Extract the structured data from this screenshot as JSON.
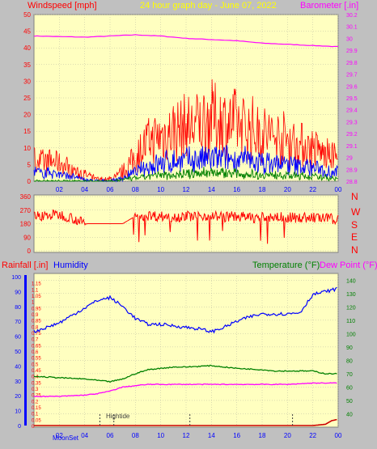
{
  "colors": {
    "bg": "#c0c0c0",
    "plot": "#ffffc0",
    "grid": "#b8b8a0",
    "red": "#ff0000",
    "blue": "#0000ff",
    "green": "#008000",
    "magenta": "#ff00ff",
    "yellow": "#ffff00",
    "darkred": "#cc0000"
  },
  "header": {
    "left_title": "Windspeed [mph]",
    "center_title": "24 hour graph day - June 07, 2022",
    "right_title": "Barometer [.in]"
  },
  "middle_header": {
    "rainfall_label": "Rainfall [.in]",
    "humidity_label": "Humidity",
    "temperature_label": "Temperature (°F)",
    "dewpoint_label": "Dew Point (°F)"
  },
  "bottom_labels": {
    "moonset": "MoonSet",
    "hightide": "Hightide"
  },
  "chart_data": [
    {
      "type": "line",
      "name": "wind-barometer",
      "x_ticks": [
        "02",
        "04",
        "06",
        "08",
        "10",
        "12",
        "14",
        "16",
        "18",
        "20",
        "22",
        "00"
      ],
      "y_left": {
        "label": "Windspeed [mph]",
        "ylim": [
          0,
          50
        ],
        "ticks": [
          0,
          5,
          10,
          15,
          20,
          25,
          30,
          35,
          40,
          45,
          50
        ]
      },
      "y_right": {
        "label": "Barometer [.in]",
        "ylim": [
          28.8,
          30.2
        ],
        "ticks": [
          "28.8",
          "28.9",
          "29",
          "29.1",
          "29.2",
          "29.3",
          "29.4",
          "29.5",
          "29.6",
          "29.7",
          "29.8",
          "29.9",
          "30",
          "30.1",
          "30.2"
        ]
      },
      "barometer": {
        "x": [
          0,
          4,
          6,
          8,
          10,
          12,
          14,
          16,
          18,
          20,
          22,
          24
        ],
        "y": [
          30.02,
          30.01,
          30.02,
          30.03,
          30.02,
          30.0,
          29.99,
          29.98,
          29.96,
          29.95,
          29.94,
          29.93
        ]
      },
      "wind_gust": {
        "x": [
          0,
          2,
          3,
          4,
          5,
          6,
          7,
          8,
          9,
          10,
          11,
          12,
          13,
          14,
          15,
          16,
          17,
          18,
          19,
          20,
          21,
          22,
          23,
          24
        ],
        "y": [
          7,
          6,
          4,
          2,
          0.5,
          0.5,
          3,
          8,
          13,
          15,
          17,
          18,
          19,
          21,
          20,
          19,
          18,
          16,
          15,
          14,
          12,
          11,
          9,
          8
        ]
      },
      "wind_avg": {
        "x": [
          0,
          2,
          3,
          4,
          5,
          6,
          7,
          8,
          9,
          10,
          11,
          12,
          13,
          14,
          15,
          16,
          17,
          18,
          19,
          20,
          21,
          22,
          23,
          24
        ],
        "y": [
          3,
          2.5,
          1.5,
          0.5,
          0,
          0,
          1,
          3,
          5,
          6,
          6.5,
          7,
          7,
          7.5,
          7.5,
          7,
          7,
          6,
          6,
          5.5,
          5,
          4.5,
          3.5,
          3
        ]
      },
      "wind_low": {
        "x": [
          0,
          4,
          6,
          8,
          10,
          12,
          14,
          16,
          18,
          20,
          22,
          24
        ],
        "y": [
          0,
          0,
          0,
          1,
          2,
          2.5,
          3,
          2.5,
          2,
          2,
          1.5,
          1
        ]
      }
    },
    {
      "type": "line",
      "name": "wind-direction",
      "y_ticks": [
        0,
        90,
        180,
        270,
        360
      ],
      "compass": [
        "N",
        "W",
        "S",
        "E",
        "N"
      ],
      "direction": {
        "x": [
          0,
          1,
          2,
          3,
          4,
          5,
          6,
          7,
          8,
          9,
          10,
          11,
          12,
          13,
          14,
          15,
          16,
          17,
          18,
          19,
          20,
          21,
          22,
          23,
          24
        ],
        "y": [
          230,
          235,
          240,
          220,
          180,
          180,
          180,
          180,
          230,
          235,
          230,
          225,
          230,
          230,
          235,
          225,
          230,
          220,
          220,
          225,
          220,
          220,
          220,
          215,
          210
        ]
      }
    },
    {
      "type": "line",
      "name": "rain-humidity-temperature",
      "x_ticks": [
        "02",
        "04",
        "06",
        "08",
        "10",
        "12",
        "14",
        "16",
        "18",
        "20",
        "22",
        "00"
      ],
      "y_humidity": {
        "label": "Humidity",
        "ylim": [
          0,
          100
        ],
        "ticks": [
          0,
          10,
          20,
          30,
          40,
          50,
          60,
          70,
          80,
          90,
          100
        ]
      },
      "y_rain": {
        "label": "Rainfall [.in]",
        "ylim": [
          0,
          1.2
        ],
        "ticks": [
          "0",
          "0.05",
          "0.1",
          "0.15",
          "0.2",
          "0.25",
          "0.3",
          "0.35",
          "0.4",
          "0.45",
          "0.5",
          "0.55",
          "0.6",
          "0.65",
          "0.7",
          "0.75",
          "0.8",
          "0.85",
          "0.9",
          "0.95",
          "1",
          "1.05",
          "1.1",
          "1.15"
        ]
      },
      "y_temp": {
        "label": "Temperature (°F)",
        "ylim": [
          30,
          145
        ],
        "ticks": [
          40,
          50,
          60,
          70,
          80,
          90,
          100,
          110,
          120,
          130,
          140
        ]
      },
      "humidity": {
        "x": [
          0,
          1,
          2,
          3,
          4,
          5,
          6,
          7,
          8,
          9,
          10,
          11,
          12,
          13,
          14,
          15,
          16,
          17,
          18,
          19,
          20,
          21,
          22,
          23,
          24
        ],
        "y": [
          63,
          66,
          69,
          74,
          79,
          84,
          86,
          80,
          72,
          68,
          68,
          67,
          66,
          65,
          63,
          66,
          70,
          73,
          75,
          75,
          75,
          76,
          88,
          90,
          92
        ]
      },
      "temperature": {
        "x": [
          0,
          2,
          4,
          5,
          6,
          7,
          8,
          9,
          10,
          11,
          12,
          14,
          15,
          16,
          18,
          19,
          20,
          22,
          23,
          24
        ],
        "y": [
          68,
          67,
          66,
          65,
          64,
          66,
          70,
          73,
          74,
          75,
          75,
          76,
          75,
          74,
          73,
          72,
          72,
          72,
          70,
          70
        ]
      },
      "dew_point": {
        "x": [
          0,
          2,
          4,
          5,
          6,
          7,
          8,
          9,
          10,
          12,
          14,
          16,
          18,
          20,
          22,
          24
        ],
        "y": [
          53,
          53,
          54,
          55,
          57,
          60,
          61,
          62,
          62,
          62,
          62,
          62,
          62,
          62,
          63,
          63
        ]
      },
      "rain": {
        "x": [
          0,
          22,
          23,
          23.5,
          24
        ],
        "y": [
          0,
          0,
          0.01,
          0.04,
          0.05
        ]
      },
      "events": {
        "moonset_hour": 4.6,
        "hightide_hours": [
          5.2,
          6.3
        ],
        "markers": [
          12.3,
          20.4
        ]
      }
    }
  ]
}
